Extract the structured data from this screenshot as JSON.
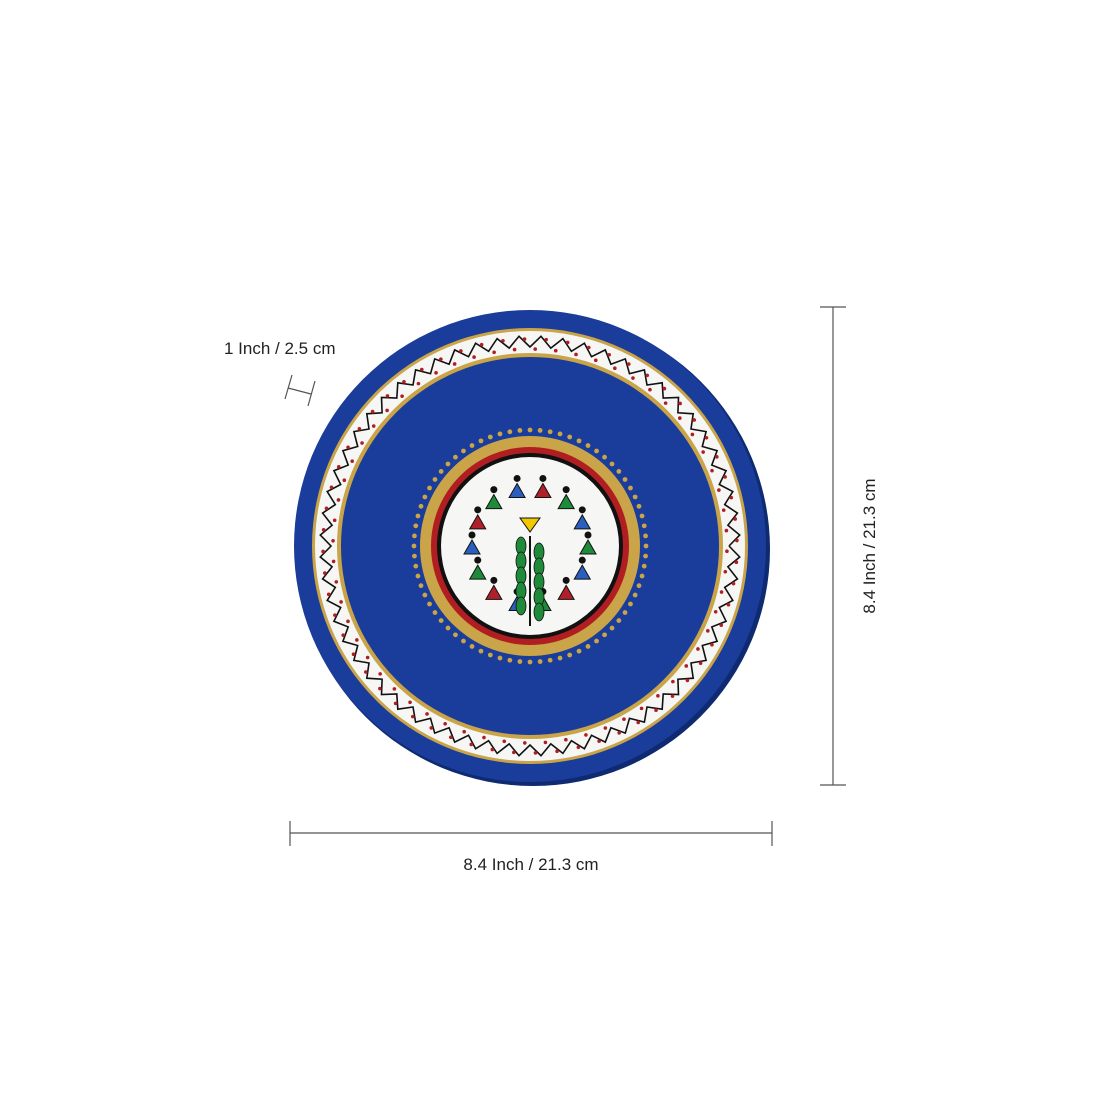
{
  "dimensions": {
    "thickness": "1 Inch / 2.5 cm",
    "width": "8.4 Inch / 21.3 cm",
    "height": "8.4 Inch / 21.3 cm"
  },
  "product": {
    "colors": {
      "plate_blue": "#1a3c9a",
      "gold": "#c9a448",
      "red": "#b01e22",
      "white": "#f6f6f4",
      "motif_green": "#1e8a3a",
      "motif_blue": "#2a5fc0",
      "motif_red": "#b0202a",
      "motif_yellow": "#f0c800"
    }
  }
}
